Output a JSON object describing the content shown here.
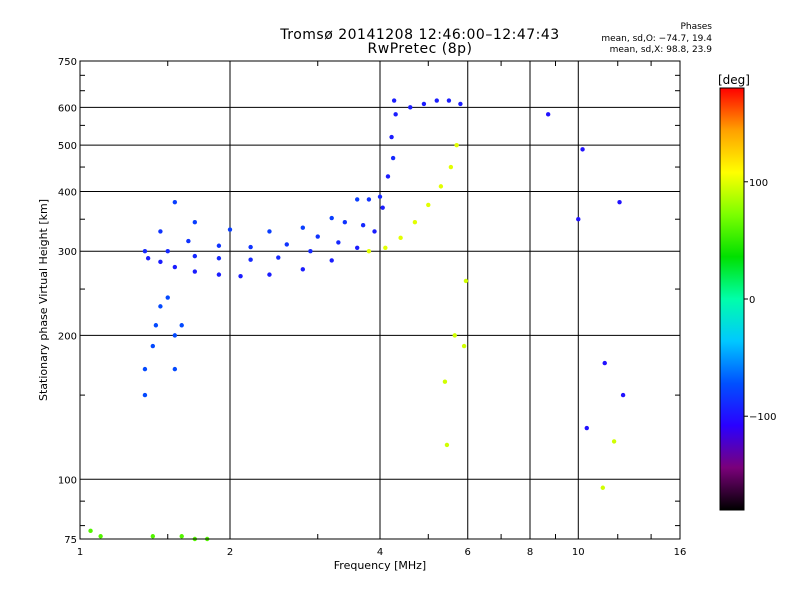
{
  "header": {
    "title": "Tromsø 20141208 12:46:00–12:47:43",
    "subtitle": "RwPretec (8p)"
  },
  "phases_box": {
    "title": "Phases",
    "line_o": "mean, sd,O: −74.7, 19.4",
    "line_x": "mean, sd,X:  98.8, 23.9"
  },
  "colorbar": {
    "unit_label": "[deg]",
    "ticks": [
      {
        "value": 100,
        "label": "100"
      },
      {
        "value": 0,
        "label": "0"
      },
      {
        "value": -100,
        "label": "−100"
      }
    ],
    "range": [
      -180,
      180
    ],
    "colors": [
      "#000000",
      "#7a007a",
      "#2a00ff",
      "#0050ff",
      "#00c8ff",
      "#00ffaa",
      "#00e000",
      "#7cff00",
      "#ffff00",
      "#ffa000",
      "#ff0000"
    ]
  },
  "chart_data": {
    "type": "scatter",
    "title": "Tromsø 20141208 12:46:00–12:47:43",
    "subtitle": "RwPretec (8p)",
    "xlabel": "Frequency [MHz]",
    "ylabel": "Stationary phase Virtual Height [km]",
    "x_scale": "log",
    "y_scale": "log",
    "xlim": [
      1,
      16
    ],
    "ylim": [
      75,
      750
    ],
    "x_ticks": [
      1,
      2,
      4,
      6,
      8,
      10,
      16
    ],
    "x_tick_labels": [
      "1",
      "2",
      "4",
      "6",
      "8",
      "10",
      "16"
    ],
    "y_ticks": [
      75,
      100,
      200,
      300,
      400,
      500,
      600,
      750
    ],
    "y_tick_labels": [
      "75",
      "100",
      "200",
      "300",
      "400",
      "500",
      "600",
      "750"
    ],
    "grid": true,
    "colorbar_label": "[deg]",
    "series": [
      {
        "color_value": -95,
        "points": [
          [
            1.37,
            290
          ],
          [
            1.45,
            285
          ],
          [
            1.55,
            278
          ],
          [
            1.7,
            272
          ],
          [
            1.9,
            268
          ],
          [
            2.1,
            266
          ],
          [
            2.4,
            268
          ],
          [
            2.8,
            275
          ],
          [
            3.2,
            287
          ],
          [
            3.6,
            305
          ],
          [
            3.9,
            330
          ],
          [
            4.05,
            370
          ],
          [
            4.15,
            430
          ],
          [
            4.22,
            520
          ],
          [
            4.27,
            620
          ]
        ]
      },
      {
        "color_value": -90,
        "points": [
          [
            1.35,
            300
          ],
          [
            1.5,
            300
          ],
          [
            1.7,
            293
          ],
          [
            1.9,
            290
          ],
          [
            2.2,
            288
          ],
          [
            2.5,
            291
          ],
          [
            2.9,
            300
          ],
          [
            3.3,
            313
          ],
          [
            3.7,
            340
          ],
          [
            4.0,
            390
          ],
          [
            4.25,
            470
          ]
        ]
      },
      {
        "color_value": -85,
        "points": [
          [
            1.45,
            330
          ],
          [
            1.65,
            315
          ],
          [
            1.9,
            308
          ],
          [
            2.2,
            306
          ],
          [
            2.6,
            310
          ],
          [
            3.0,
            322
          ],
          [
            3.4,
            345
          ],
          [
            3.8,
            385
          ]
        ]
      },
      {
        "color_value": -80,
        "points": [
          [
            1.55,
            380
          ],
          [
            1.7,
            345
          ],
          [
            2.0,
            333
          ],
          [
            2.4,
            330
          ],
          [
            2.8,
            336
          ],
          [
            3.2,
            352
          ],
          [
            3.6,
            385
          ]
        ]
      },
      {
        "color_value": -75,
        "points": [
          [
            1.35,
            150
          ],
          [
            1.35,
            170
          ],
          [
            1.4,
            190
          ],
          [
            1.42,
            210
          ],
          [
            1.45,
            230
          ],
          [
            1.5,
            240
          ],
          [
            1.55,
            200
          ],
          [
            1.6,
            210
          ],
          [
            1.55,
            170
          ]
        ]
      },
      {
        "color_value": 100,
        "points": [
          [
            3.8,
            300
          ],
          [
            4.1,
            305
          ],
          [
            4.4,
            320
          ],
          [
            4.7,
            345
          ],
          [
            5.0,
            375
          ],
          [
            5.3,
            410
          ],
          [
            5.55,
            450
          ],
          [
            5.7,
            500
          ]
        ]
      },
      {
        "color_value": -95,
        "points": [
          [
            4.3,
            580
          ],
          [
            4.6,
            600
          ],
          [
            4.9,
            610
          ],
          [
            5.2,
            620
          ],
          [
            5.5,
            620
          ],
          [
            5.8,
            610
          ]
        ]
      },
      {
        "color_value": 95,
        "points": [
          [
            5.4,
            160
          ],
          [
            5.45,
            118
          ],
          [
            5.65,
            200
          ],
          [
            5.9,
            190
          ],
          [
            5.95,
            260
          ],
          [
            11.2,
            96
          ],
          [
            11.8,
            120
          ]
        ]
      },
      {
        "color_value": -100,
        "points": [
          [
            8.7,
            580
          ],
          [
            10.2,
            490
          ],
          [
            10.4,
            128
          ],
          [
            10.0,
            350
          ],
          [
            11.3,
            175
          ],
          [
            12.1,
            380
          ],
          [
            12.3,
            150
          ]
        ]
      },
      {
        "color_value": 60,
        "points": [
          [
            1.05,
            78
          ],
          [
            1.1,
            76
          ],
          [
            1.4,
            76
          ],
          [
            1.6,
            76
          ],
          [
            1.7,
            75
          ],
          [
            1.8,
            75
          ]
        ]
      }
    ]
  }
}
